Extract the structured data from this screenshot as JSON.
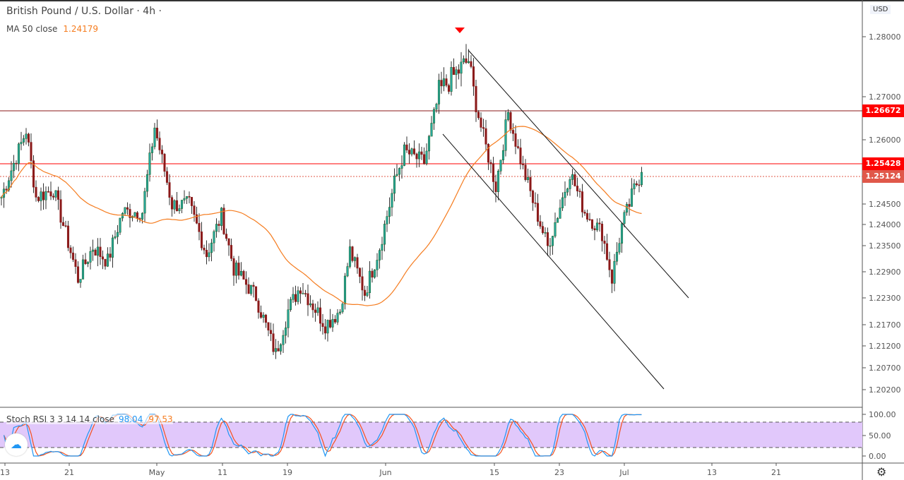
{
  "header": {
    "title": "British Pound / U.S. Dollar · 4h ·",
    "ma_label": "MA 50 close",
    "ma_value": "1.24179",
    "currency": "USD"
  },
  "stoch": {
    "label": "Stoch RSI 3 3 14 14 close",
    "k_value": "98.04",
    "d_value": "97.53",
    "ticks": [
      "100.00",
      "50.00",
      "0.00"
    ]
  },
  "price_tags": [
    {
      "value": "1.26672",
      "color": "#ff0000"
    },
    {
      "value": "1.25428",
      "color": "#ff0000"
    },
    {
      "value": "1.25124",
      "color": "#e0584a"
    }
  ],
  "time_labels": [
    "13",
    "21",
    "May",
    "11",
    "19",
    "Jun",
    "15",
    "23",
    "Jul",
    "13",
    "21"
  ],
  "icons": {
    "settings": "gear-icon",
    "logo": "tradingview-logo-icon"
  },
  "chart_data": {
    "type": "candlestick",
    "title": "British Pound / U.S. Dollar · 4h",
    "y_ticks": [
      "1.28000",
      "1.27000",
      "1.26000",
      "1.24500",
      "1.24000",
      "1.23500",
      "1.22900",
      "1.22300",
      "1.21700",
      "1.21200",
      "1.20700",
      "1.20200"
    ],
    "horizontal_levels": [
      1.26672,
      1.25428
    ],
    "last_price": 1.25124,
    "up_color": "#26a69a",
    "down_color": "#8b1a1a",
    "ma_color": "#f57c1f",
    "close_path": [
      [
        0,
        1.2465
      ],
      [
        10,
        1.2622
      ],
      [
        14,
        1.2465
      ],
      [
        21,
        1.2483
      ],
      [
        31,
        1.2274
      ],
      [
        37,
        1.2347
      ],
      [
        43,
        1.2314
      ],
      [
        49,
        1.2431
      ],
      [
        57,
        1.2431
      ],
      [
        62,
        1.263
      ],
      [
        69,
        1.2448
      ],
      [
        76,
        1.2448
      ],
      [
        83,
        1.233
      ],
      [
        89,
        1.2422
      ],
      [
        94,
        1.2298
      ],
      [
        103,
        1.2233
      ],
      [
        111,
        1.2101
      ],
      [
        116,
        1.2202
      ],
      [
        121,
        1.2258
      ],
      [
        131,
        1.217
      ],
      [
        137,
        1.2202
      ],
      [
        141,
        1.2338
      ],
      [
        147,
        1.2241
      ],
      [
        153,
        1.2347
      ],
      [
        159,
        1.2497
      ],
      [
        163,
        1.2572
      ],
      [
        171,
        1.2546
      ],
      [
        177,
        1.2708
      ],
      [
        189,
        1.2761
      ],
      [
        194,
        1.263
      ],
      [
        200,
        1.2489
      ],
      [
        205,
        1.2663
      ],
      [
        211,
        1.253
      ],
      [
        221,
        1.2347
      ],
      [
        230,
        1.2522
      ],
      [
        236,
        1.2431
      ],
      [
        243,
        1.238
      ],
      [
        247,
        1.2274
      ],
      [
        251,
        1.2397
      ],
      [
        256,
        1.2483
      ],
      [
        259,
        1.2522
      ]
    ]
  }
}
